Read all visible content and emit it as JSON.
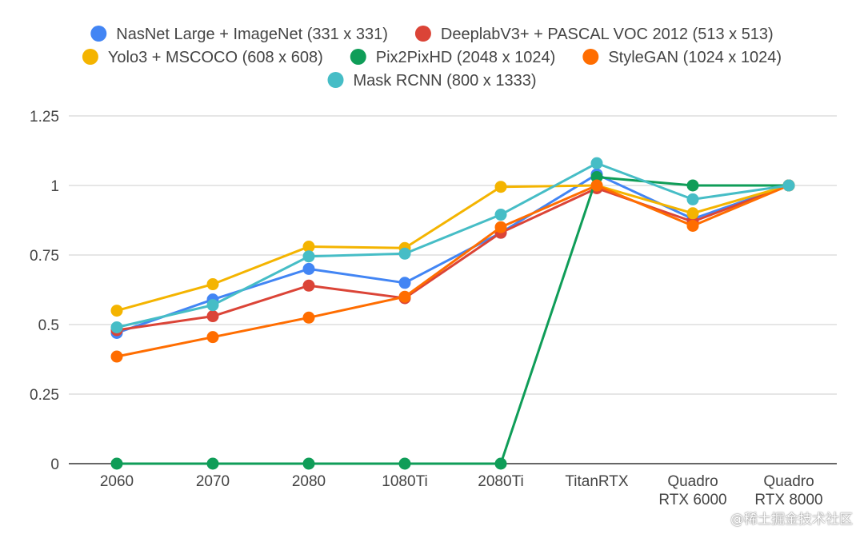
{
  "chart_data": {
    "type": "line",
    "title": "",
    "xlabel": "",
    "ylabel": "",
    "categories": [
      "2060",
      "2070",
      "2080",
      "1080Ti",
      "2080Ti",
      "TitanRTX",
      "Quadro RTX 6000",
      "Quadro RTX 8000"
    ],
    "category_lines": [
      [
        "2060"
      ],
      [
        "2070"
      ],
      [
        "2080"
      ],
      [
        "1080Ti"
      ],
      [
        "2080Ti"
      ],
      [
        "TitanRTX"
      ],
      [
        "Quadro",
        "RTX 6000"
      ],
      [
        "Quadro",
        "RTX 8000"
      ]
    ],
    "ylim": [
      0,
      1.25
    ],
    "yticks": [
      "0",
      "0.25",
      "0.5",
      "0.75",
      "1",
      "1.25"
    ],
    "grid": true,
    "legend_position": "top",
    "series": [
      {
        "name": "NasNet Large + ImageNet (331 x 331)",
        "color": "#4285F4",
        "values": [
          0.47,
          0.59,
          0.7,
          0.65,
          0.83,
          1.04,
          0.88,
          1.0
        ]
      },
      {
        "name": "DeeplabV3+ + PASCAL VOC 2012 (513 x 513)",
        "color": "#DB4437",
        "values": [
          0.48,
          0.53,
          0.64,
          0.595,
          0.83,
          0.99,
          0.87,
          1.0
        ]
      },
      {
        "name": "Yolo3 + MSCOCO (608 x 608)",
        "color": "#F4B400",
        "values": [
          0.55,
          0.645,
          0.78,
          0.775,
          0.995,
          1.0,
          0.9,
          1.0
        ]
      },
      {
        "name": "Pix2PixHD (2048 x 1024)",
        "color": "#0F9D58",
        "values": [
          0,
          0,
          0,
          0,
          0,
          1.03,
          1.0,
          1.0
        ]
      },
      {
        "name": "StyleGAN (1024 x 1024)",
        "color": "#FF6D00",
        "values": [
          0.385,
          0.455,
          0.525,
          0.6,
          0.85,
          1.0,
          0.855,
          1.0
        ]
      },
      {
        "name": "Mask RCNN (800 x 1333)",
        "color": "#46BDC6",
        "values": [
          0.49,
          0.57,
          0.745,
          0.755,
          0.895,
          1.08,
          0.95,
          1.0
        ]
      }
    ]
  },
  "watermark": "@稀土掘金技术社区"
}
